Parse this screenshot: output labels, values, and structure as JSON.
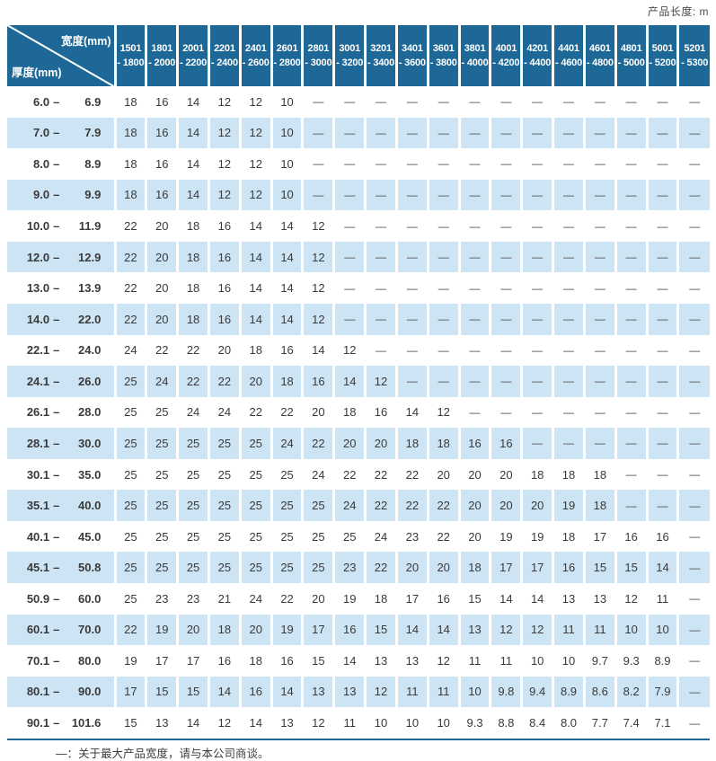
{
  "header": {
    "product_length_label": "产品长度: m"
  },
  "table": {
    "corner": {
      "width_label": "宽度(mm)",
      "thickness_label": "厚度(mm)"
    },
    "columns": [
      {
        "line1": "1501",
        "line2": "- 1800"
      },
      {
        "line1": "1801",
        "line2": "- 2000"
      },
      {
        "line1": "2001",
        "line2": "- 2200"
      },
      {
        "line1": "2201",
        "line2": "- 2400"
      },
      {
        "line1": "2401",
        "line2": "- 2600"
      },
      {
        "line1": "2601",
        "line2": "- 2800"
      },
      {
        "line1": "2801",
        "line2": "- 3000"
      },
      {
        "line1": "3001",
        "line2": "- 3200"
      },
      {
        "line1": "3201",
        "line2": "- 3400"
      },
      {
        "line1": "3401",
        "line2": "- 3600"
      },
      {
        "line1": "3601",
        "line2": "- 3800"
      },
      {
        "line1": "3801",
        "line2": "- 4000"
      },
      {
        "line1": "4001",
        "line2": "- 4200"
      },
      {
        "line1": "4201",
        "line2": "- 4400"
      },
      {
        "line1": "4401",
        "line2": "- 4600"
      },
      {
        "line1": "4601",
        "line2": "- 4800"
      },
      {
        "line1": "4801",
        "line2": "- 5000"
      },
      {
        "line1": "5001",
        "line2": "- 5200"
      },
      {
        "line1": "5201",
        "line2": "- 5300"
      }
    ],
    "rows": [
      {
        "from": "6.0",
        "to": "6.9",
        "values": [
          "18",
          "16",
          "14",
          "12",
          "12",
          "10",
          "—",
          "—",
          "—",
          "—",
          "—",
          "—",
          "—",
          "—",
          "—",
          "—",
          "—",
          "—",
          "—"
        ]
      },
      {
        "from": "7.0",
        "to": "7.9",
        "values": [
          "18",
          "16",
          "14",
          "12",
          "12",
          "10",
          "—",
          "—",
          "—",
          "—",
          "—",
          "—",
          "—",
          "—",
          "—",
          "—",
          "—",
          "—",
          "—"
        ]
      },
      {
        "from": "8.0",
        "to": "8.9",
        "values": [
          "18",
          "16",
          "14",
          "12",
          "12",
          "10",
          "—",
          "—",
          "—",
          "—",
          "—",
          "—",
          "—",
          "—",
          "—",
          "—",
          "—",
          "—",
          "—"
        ]
      },
      {
        "from": "9.0",
        "to": "9.9",
        "values": [
          "18",
          "16",
          "14",
          "12",
          "12",
          "10",
          "—",
          "—",
          "—",
          "—",
          "—",
          "—",
          "—",
          "—",
          "—",
          "—",
          "—",
          "—",
          "—"
        ]
      },
      {
        "from": "10.0",
        "to": "11.9",
        "values": [
          "22",
          "20",
          "18",
          "16",
          "14",
          "14",
          "12",
          "—",
          "—",
          "—",
          "—",
          "—",
          "—",
          "—",
          "—",
          "—",
          "—",
          "—",
          "—"
        ]
      },
      {
        "from": "12.0",
        "to": "12.9",
        "values": [
          "22",
          "20",
          "18",
          "16",
          "14",
          "14",
          "12",
          "—",
          "—",
          "—",
          "—",
          "—",
          "—",
          "—",
          "—",
          "—",
          "—",
          "—",
          "—"
        ]
      },
      {
        "from": "13.0",
        "to": "13.9",
        "values": [
          "22",
          "20",
          "18",
          "16",
          "14",
          "14",
          "12",
          "—",
          "—",
          "—",
          "—",
          "—",
          "—",
          "—",
          "—",
          "—",
          "—",
          "—",
          "—"
        ]
      },
      {
        "from": "14.0",
        "to": "22.0",
        "values": [
          "22",
          "20",
          "18",
          "16",
          "14",
          "14",
          "12",
          "—",
          "—",
          "—",
          "—",
          "—",
          "—",
          "—",
          "—",
          "—",
          "—",
          "—",
          "—"
        ]
      },
      {
        "from": "22.1",
        "to": "24.0",
        "values": [
          "24",
          "22",
          "22",
          "20",
          "18",
          "16",
          "14",
          "12",
          "—",
          "—",
          "—",
          "—",
          "—",
          "—",
          "—",
          "—",
          "—",
          "—",
          "—"
        ]
      },
      {
        "from": "24.1",
        "to": "26.0",
        "values": [
          "25",
          "24",
          "22",
          "22",
          "20",
          "18",
          "16",
          "14",
          "12",
          "—",
          "—",
          "—",
          "—",
          "—",
          "—",
          "—",
          "—",
          "—",
          "—"
        ]
      },
      {
        "from": "26.1",
        "to": "28.0",
        "values": [
          "25",
          "25",
          "24",
          "24",
          "22",
          "22",
          "20",
          "18",
          "16",
          "14",
          "12",
          "—",
          "—",
          "—",
          "—",
          "—",
          "—",
          "—",
          "—"
        ]
      },
      {
        "from": "28.1",
        "to": "30.0",
        "values": [
          "25",
          "25",
          "25",
          "25",
          "25",
          "24",
          "22",
          "20",
          "20",
          "18",
          "18",
          "16",
          "16",
          "—",
          "—",
          "—",
          "—",
          "—",
          "—"
        ]
      },
      {
        "from": "30.1",
        "to": "35.0",
        "values": [
          "25",
          "25",
          "25",
          "25",
          "25",
          "25",
          "24",
          "22",
          "22",
          "22",
          "20",
          "20",
          "20",
          "18",
          "18",
          "18",
          "—",
          "—",
          "—"
        ]
      },
      {
        "from": "35.1",
        "to": "40.0",
        "values": [
          "25",
          "25",
          "25",
          "25",
          "25",
          "25",
          "25",
          "24",
          "22",
          "22",
          "22",
          "20",
          "20",
          "20",
          "19",
          "18",
          "—",
          "—",
          "—"
        ]
      },
      {
        "from": "40.1",
        "to": "45.0",
        "values": [
          "25",
          "25",
          "25",
          "25",
          "25",
          "25",
          "25",
          "25",
          "24",
          "23",
          "22",
          "20",
          "19",
          "19",
          "18",
          "17",
          "16",
          "16",
          "—"
        ]
      },
      {
        "from": "45.1",
        "to": "50.8",
        "values": [
          "25",
          "25",
          "25",
          "25",
          "25",
          "25",
          "25",
          "23",
          "22",
          "20",
          "20",
          "18",
          "17",
          "17",
          "16",
          "15",
          "15",
          "14",
          "—"
        ]
      },
      {
        "from": "50.9",
        "to": "60.0",
        "values": [
          "25",
          "23",
          "23",
          "21",
          "24",
          "22",
          "20",
          "19",
          "18",
          "17",
          "16",
          "15",
          "14",
          "14",
          "13",
          "13",
          "12",
          "11",
          "—"
        ]
      },
      {
        "from": "60.1",
        "to": "70.0",
        "values": [
          "22",
          "19",
          "20",
          "18",
          "20",
          "19",
          "17",
          "16",
          "15",
          "14",
          "14",
          "13",
          "12",
          "12",
          "11",
          "11",
          "10",
          "10",
          "—"
        ]
      },
      {
        "from": "70.1",
        "to": "80.0",
        "values": [
          "19",
          "17",
          "17",
          "16",
          "18",
          "16",
          "15",
          "14",
          "13",
          "13",
          "12",
          "11",
          "11",
          "10",
          "10",
          "9.7",
          "9.3",
          "8.9",
          "—"
        ]
      },
      {
        "from": "80.1",
        "to": "90.0",
        "values": [
          "17",
          "15",
          "15",
          "14",
          "16",
          "14",
          "13",
          "13",
          "12",
          "11",
          "11",
          "10",
          "9.8",
          "9.4",
          "8.9",
          "8.6",
          "8.2",
          "7.9",
          "—"
        ]
      },
      {
        "from": "90.1",
        "to": "101.6",
        "values": [
          "15",
          "13",
          "14",
          "12",
          "14",
          "13",
          "12",
          "11",
          "10",
          "10",
          "10",
          "9.3",
          "8.8",
          "8.4",
          "8.0",
          "7.7",
          "7.4",
          "7.1",
          "—"
        ]
      }
    ],
    "dash_symbol": "—",
    "range_separator": "–"
  },
  "footer": {
    "note": "—：关于最大产品宽度，请与本公司商谈。"
  },
  "colors": {
    "header_blue": "#1E6897",
    "alt_row_blue": "#CDE4F4",
    "text_dark": "#3a3a3a"
  }
}
